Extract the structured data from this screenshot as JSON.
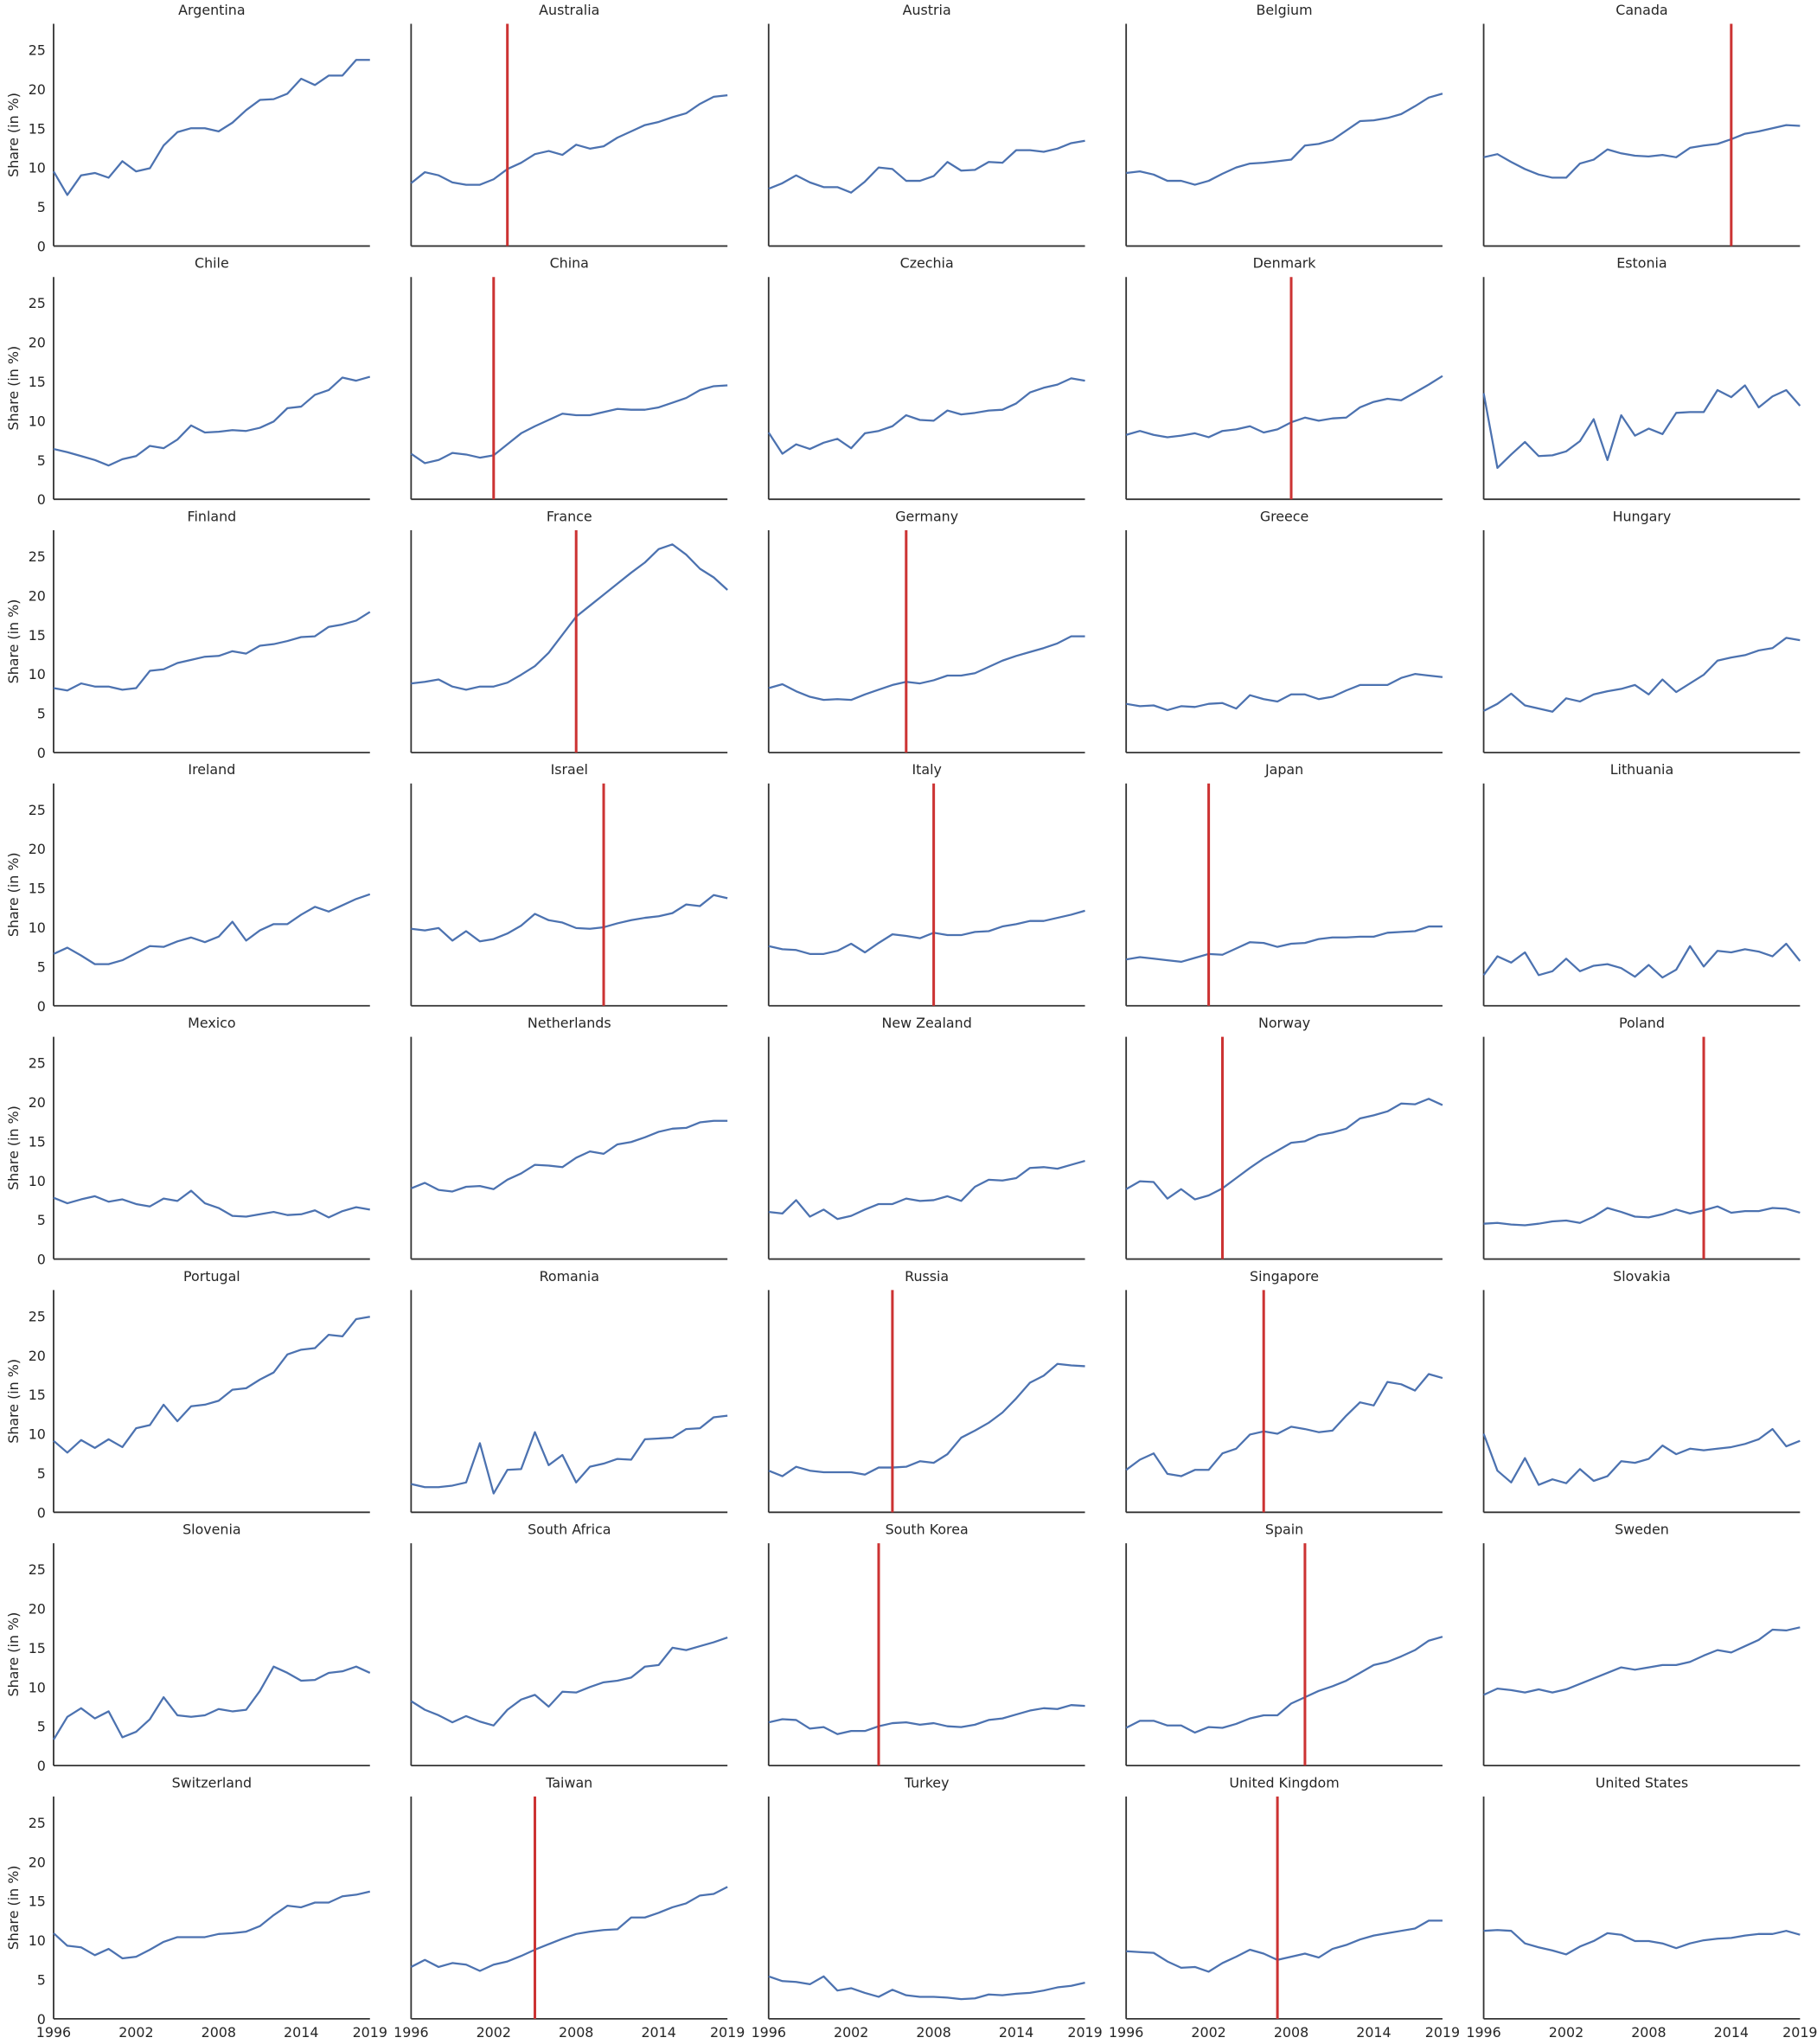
{
  "chart_data": {
    "type": "line",
    "ylabel": "Share (in %)",
    "x": [
      1996,
      1997,
      1998,
      1999,
      2000,
      2001,
      2002,
      2003,
      2004,
      2005,
      2006,
      2007,
      2008,
      2009,
      2010,
      2011,
      2012,
      2013,
      2014,
      2015,
      2016,
      2017,
      2018,
      2019
    ],
    "xlim": [
      1996,
      2019
    ],
    "xticks": [
      1996,
      2002,
      2008,
      2014,
      2019
    ],
    "ylim": [
      0,
      28.3
    ],
    "yticks": [
      0,
      5,
      10,
      15,
      20,
      25
    ],
    "grid": false,
    "color": "#4c72b0",
    "vline_color": "#cc3333",
    "panels": [
      {
        "title": "Argentina",
        "values": [
          9.5,
          6.5,
          9,
          9.3,
          8.7,
          10.8,
          9.5,
          9.9,
          12.8,
          14.5,
          15,
          15,
          14.6,
          15.7,
          17.3,
          18.6,
          18.7,
          19.4,
          21.3,
          20.5,
          21.7,
          21.7,
          23.7,
          23.7
        ]
      },
      {
        "title": "Australia",
        "vline": 2003,
        "values": [
          8,
          9.4,
          9,
          8.1,
          7.8,
          7.8,
          8.5,
          9.8,
          10.6,
          11.7,
          12.1,
          11.6,
          12.9,
          12.4,
          12.7,
          13.8,
          14.6,
          15.4,
          15.8,
          16.4,
          16.9,
          18.1,
          19,
          19.2
        ]
      },
      {
        "title": "Austria",
        "values": [
          7.3,
          8,
          9,
          8.1,
          7.5,
          7.5,
          6.8,
          8.2,
          10,
          9.8,
          8.3,
          8.3,
          8.9,
          10.7,
          9.6,
          9.7,
          10.7,
          10.6,
          12.2,
          12.2,
          12,
          12.4,
          13.1,
          13.4
        ]
      },
      {
        "title": "Belgium",
        "values": [
          9.3,
          9.5,
          9.1,
          8.3,
          8.3,
          7.8,
          8.3,
          9.2,
          10,
          10.5,
          10.6,
          10.8,
          11,
          12.8,
          13,
          13.5,
          14.7,
          15.9,
          16,
          16.3,
          16.8,
          17.8,
          18.9,
          19.4
        ]
      },
      {
        "title": "Canada",
        "vline": 2014,
        "values": [
          11.3,
          11.7,
          10.7,
          9.8,
          9.1,
          8.7,
          8.7,
          10.5,
          11,
          12.3,
          11.8,
          11.5,
          11.4,
          11.6,
          11.3,
          12.5,
          12.8,
          13,
          13.6,
          14.3,
          14.6,
          15,
          15.4,
          15.3
        ]
      },
      {
        "title": "Chile",
        "values": [
          6.4,
          6,
          5.5,
          5,
          4.3,
          5.1,
          5.5,
          6.8,
          6.5,
          7.6,
          9.4,
          8.5,
          8.6,
          8.8,
          8.7,
          9.1,
          9.9,
          11.6,
          11.8,
          13.3,
          13.9,
          15.5,
          15.1,
          15.6
        ]
      },
      {
        "title": "China",
        "vline": 2002,
        "values": [
          5.8,
          4.6,
          5,
          5.9,
          5.7,
          5.3,
          5.6,
          7,
          8.4,
          9.3,
          10.1,
          10.9,
          10.7,
          10.7,
          11.1,
          11.5,
          11.4,
          11.4,
          11.7,
          12.3,
          12.9,
          13.9,
          14.4,
          14.5
        ]
      },
      {
        "title": "Czechia",
        "values": [
          8.5,
          5.8,
          7,
          6.4,
          7.2,
          7.7,
          6.5,
          8.4,
          8.7,
          9.3,
          10.7,
          10.1,
          10,
          11.3,
          10.8,
          11,
          11.3,
          11.4,
          12.2,
          13.6,
          14.2,
          14.6,
          15.4,
          15.1
        ]
      },
      {
        "title": "Denmark",
        "vline": 2008,
        "values": [
          8.2,
          8.7,
          8.2,
          7.9,
          8.1,
          8.4,
          7.9,
          8.7,
          8.9,
          9.3,
          8.5,
          8.9,
          9.8,
          10.4,
          10,
          10.3,
          10.4,
          11.7,
          12.4,
          12.8,
          12.6,
          13.6,
          14.6,
          15.7
        ]
      },
      {
        "title": "Estonia",
        "values": [
          13.5,
          4,
          5.7,
          7.3,
          5.5,
          5.6,
          6.1,
          7.4,
          10.2,
          5,
          10.7,
          8.1,
          9,
          8.3,
          11,
          11.1,
          11.1,
          13.9,
          13,
          14.5,
          11.7,
          13.1,
          13.9,
          11.9
        ]
      },
      {
        "title": "Finland",
        "values": [
          8.2,
          7.9,
          8.8,
          8.4,
          8.4,
          8,
          8.2,
          10.4,
          10.6,
          11.4,
          11.8,
          12.2,
          12.3,
          12.9,
          12.6,
          13.6,
          13.8,
          14.2,
          14.7,
          14.8,
          16,
          16.3,
          16.8,
          17.9
        ]
      },
      {
        "title": "France",
        "vline": 2008,
        "values": [
          8.8,
          9,
          9.3,
          8.4,
          8,
          8.4,
          8.4,
          8.9,
          9.9,
          11,
          12.7,
          15,
          17.3,
          18.7,
          20.1,
          21.5,
          22.9,
          24.2,
          25.9,
          26.5,
          25.2,
          23.4,
          22.3,
          20.7
        ]
      },
      {
        "title": "Germany",
        "vline": 2006,
        "values": [
          8.2,
          8.7,
          7.8,
          7.1,
          6.7,
          6.8,
          6.7,
          7.4,
          8,
          8.6,
          9,
          8.8,
          9.2,
          9.8,
          9.8,
          10.1,
          10.9,
          11.7,
          12.3,
          12.8,
          13.3,
          13.9,
          14.8,
          14.8
        ]
      },
      {
        "title": "Greece",
        "values": [
          6.2,
          5.9,
          6,
          5.4,
          5.9,
          5.8,
          6.2,
          6.3,
          5.6,
          7.3,
          6.8,
          6.5,
          7.4,
          7.4,
          6.8,
          7.1,
          7.9,
          8.6,
          8.6,
          8.6,
          9.5,
          10,
          9.8,
          9.6
        ]
      },
      {
        "title": "Hungary",
        "values": [
          5.3,
          6.2,
          7.5,
          6,
          5.6,
          5.2,
          6.9,
          6.5,
          7.4,
          7.8,
          8.1,
          8.6,
          7.4,
          9.3,
          7.7,
          8.8,
          9.9,
          11.7,
          12.1,
          12.4,
          13,
          13.3,
          14.6,
          14.3
        ]
      },
      {
        "title": "Ireland",
        "values": [
          6.6,
          7.4,
          6.4,
          5.3,
          5.3,
          5.8,
          6.7,
          7.6,
          7.5,
          8.2,
          8.7,
          8.1,
          8.8,
          10.7,
          8.3,
          9.6,
          10.4,
          10.4,
          11.6,
          12.6,
          12,
          12.8,
          13.6,
          14.2
        ]
      },
      {
        "title": "Israel",
        "vline": 2010,
        "values": [
          9.8,
          9.6,
          9.9,
          8.3,
          9.5,
          8.2,
          8.5,
          9.2,
          10.2,
          11.7,
          10.9,
          10.6,
          9.9,
          9.8,
          10,
          10.5,
          10.9,
          11.2,
          11.4,
          11.8,
          12.9,
          12.7,
          14.1,
          13.7
        ]
      },
      {
        "title": "Italy",
        "vline": 2008,
        "values": [
          7.6,
          7.2,
          7.1,
          6.6,
          6.6,
          7,
          7.9,
          6.8,
          8,
          9.1,
          8.9,
          8.6,
          9.3,
          9,
          9,
          9.4,
          9.5,
          10.1,
          10.4,
          10.8,
          10.8,
          11.2,
          11.6,
          12.1
        ]
      },
      {
        "title": "Japan",
        "vline": 2002,
        "values": [
          5.9,
          6.2,
          6,
          5.8,
          5.6,
          6.1,
          6.6,
          6.5,
          7.3,
          8.1,
          8,
          7.5,
          7.9,
          8,
          8.5,
          8.7,
          8.7,
          8.8,
          8.8,
          9.3,
          9.4,
          9.5,
          10.1,
          10.1
        ]
      },
      {
        "title": "Lithuania",
        "values": [
          3.9,
          6.3,
          5.5,
          6.8,
          3.9,
          4.4,
          6,
          4.4,
          5.1,
          5.3,
          4.8,
          3.7,
          5.2,
          3.6,
          4.6,
          7.6,
          5,
          7,
          6.8,
          7.2,
          6.9,
          6.3,
          7.9,
          5.7
        ]
      },
      {
        "title": "Mexico",
        "values": [
          7.8,
          7.1,
          7.6,
          8,
          7.3,
          7.6,
          7,
          6.7,
          7.7,
          7.4,
          8.7,
          7.1,
          6.5,
          5.5,
          5.4,
          5.7,
          6,
          5.6,
          5.7,
          6.2,
          5.3,
          6.1,
          6.6,
          6.3
        ]
      },
      {
        "title": "Netherlands",
        "values": [
          9,
          9.7,
          8.8,
          8.6,
          9.2,
          9.3,
          8.9,
          10.1,
          10.9,
          12,
          11.9,
          11.7,
          12.9,
          13.7,
          13.4,
          14.6,
          14.9,
          15.5,
          16.2,
          16.6,
          16.7,
          17.4,
          17.6,
          17.6
        ]
      },
      {
        "title": "New Zealand",
        "values": [
          6,
          5.8,
          7.5,
          5.4,
          6.3,
          5.1,
          5.5,
          6.3,
          7,
          7,
          7.7,
          7.4,
          7.5,
          8,
          7.4,
          9.2,
          10.1,
          10,
          10.3,
          11.6,
          11.7,
          11.5,
          12,
          12.5
        ]
      },
      {
        "title": "Norway",
        "vline": 2003,
        "values": [
          8.9,
          9.9,
          9.8,
          7.7,
          8.9,
          7.6,
          8.1,
          9,
          10.3,
          11.6,
          12.8,
          13.8,
          14.8,
          15,
          15.8,
          16.1,
          16.6,
          17.9,
          18.3,
          18.8,
          19.8,
          19.7,
          20.4,
          19.6
        ]
      },
      {
        "title": "Poland",
        "vline": 2012,
        "values": [
          4.5,
          4.6,
          4.4,
          4.3,
          4.5,
          4.8,
          4.9,
          4.6,
          5.4,
          6.5,
          6,
          5.4,
          5.3,
          5.7,
          6.3,
          5.8,
          6.2,
          6.7,
          5.9,
          6.1,
          6.1,
          6.5,
          6.4,
          5.9
        ]
      },
      {
        "title": "Portugal",
        "values": [
          9.1,
          7.6,
          9.2,
          8.2,
          9.3,
          8.3,
          10.7,
          11.1,
          13.7,
          11.6,
          13.5,
          13.7,
          14.2,
          15.6,
          15.8,
          16.9,
          17.8,
          20.1,
          20.7,
          20.9,
          22.6,
          22.4,
          24.6,
          24.9
        ]
      },
      {
        "title": "Romania",
        "values": [
          3.6,
          3.2,
          3.2,
          3.4,
          3.8,
          8.8,
          2.4,
          5.4,
          5.5,
          10.2,
          6,
          7.3,
          3.8,
          5.8,
          6.2,
          6.8,
          6.7,
          9.3,
          9.4,
          9.5,
          10.6,
          10.7,
          12.1,
          12.3
        ]
      },
      {
        "title": "Russia",
        "vline": 2005,
        "values": [
          5.3,
          4.6,
          5.8,
          5.3,
          5.1,
          5.1,
          5.1,
          4.8,
          5.7,
          5.7,
          5.8,
          6.5,
          6.3,
          7.4,
          9.5,
          10.4,
          11.4,
          12.7,
          14.5,
          16.5,
          17.4,
          18.9,
          18.7,
          18.6
        ]
      },
      {
        "title": "Singapore",
        "vline": 2006,
        "values": [
          5.4,
          6.7,
          7.5,
          4.9,
          4.6,
          5.4,
          5.4,
          7.5,
          8.1,
          9.9,
          10.3,
          10,
          10.9,
          10.6,
          10.2,
          10.4,
          12.3,
          14,
          13.6,
          16.6,
          16.3,
          15.5,
          17.6,
          17.1
        ]
      },
      {
        "title": "Slovakia",
        "values": [
          10,
          5.3,
          3.8,
          6.9,
          3.5,
          4.2,
          3.7,
          5.5,
          4,
          4.6,
          6.5,
          6.3,
          6.8,
          8.5,
          7.4,
          8.1,
          7.9,
          8.1,
          8.3,
          8.7,
          9.3,
          10.6,
          8.4,
          9.1
        ]
      },
      {
        "title": "Slovenia",
        "values": [
          3.3,
          6.2,
          7.3,
          6,
          6.9,
          3.6,
          4.3,
          5.9,
          8.7,
          6.4,
          6.2,
          6.4,
          7.2,
          6.9,
          7.1,
          9.5,
          12.6,
          11.8,
          10.8,
          10.9,
          11.8,
          12,
          12.6,
          11.8
        ]
      },
      {
        "title": "South Africa",
        "values": [
          8.2,
          7.1,
          6.4,
          5.5,
          6.3,
          5.6,
          5.1,
          7.1,
          8.4,
          9,
          7.5,
          9.4,
          9.3,
          10,
          10.6,
          10.8,
          11.2,
          12.6,
          12.8,
          15,
          14.7,
          15.2,
          15.7,
          16.3
        ]
      },
      {
        "title": "South Korea",
        "vline": 2004,
        "values": [
          5.5,
          5.9,
          5.8,
          4.7,
          4.9,
          4,
          4.4,
          4.4,
          5,
          5.4,
          5.5,
          5.2,
          5.4,
          5,
          4.9,
          5.2,
          5.8,
          6,
          6.5,
          7,
          7.3,
          7.2,
          7.7,
          7.6
        ]
      },
      {
        "title": "Spain",
        "vline": 2009,
        "values": [
          4.8,
          5.7,
          5.7,
          5.1,
          5.1,
          4.2,
          4.9,
          4.8,
          5.3,
          6,
          6.4,
          6.4,
          7.9,
          8.7,
          9.5,
          10.1,
          10.8,
          11.8,
          12.8,
          13.2,
          13.9,
          14.7,
          15.9,
          16.4
        ]
      },
      {
        "title": "Sweden",
        "values": [
          9,
          9.8,
          9.6,
          9.3,
          9.7,
          9.3,
          9.7,
          10.4,
          11.1,
          11.8,
          12.5,
          12.2,
          12.5,
          12.8,
          12.8,
          13.2,
          14,
          14.7,
          14.4,
          15.2,
          16,
          17.3,
          17.2,
          17.6
        ]
      },
      {
        "title": "Switzerland",
        "values": [
          10.9,
          9.3,
          9.1,
          8.1,
          8.9,
          7.7,
          7.9,
          8.8,
          9.8,
          10.4,
          10.4,
          10.4,
          10.8,
          10.9,
          11.1,
          11.8,
          13.2,
          14.4,
          14.2,
          14.8,
          14.8,
          15.6,
          15.8,
          16.2
        ]
      },
      {
        "title": "Taiwan",
        "vline": 2005,
        "values": [
          6.6,
          7.5,
          6.6,
          7.1,
          6.9,
          6.1,
          6.9,
          7.3,
          8,
          8.8,
          9.5,
          10.2,
          10.8,
          11.1,
          11.3,
          11.4,
          12.9,
          12.9,
          13.5,
          14.2,
          14.7,
          15.7,
          15.9,
          16.8
        ]
      },
      {
        "title": "Turkey",
        "values": [
          5.4,
          4.8,
          4.7,
          4.4,
          5.4,
          3.6,
          3.9,
          3.3,
          2.8,
          3.7,
          3,
          2.8,
          2.8,
          2.7,
          2.5,
          2.6,
          3.1,
          3,
          3.2,
          3.3,
          3.6,
          4,
          4.2,
          4.6
        ]
      },
      {
        "title": "United Kingdom",
        "vline": 2007,
        "values": [
          8.6,
          8.5,
          8.4,
          7.3,
          6.5,
          6.6,
          6,
          7.1,
          7.9,
          8.8,
          8.3,
          7.5,
          7.9,
          8.3,
          7.8,
          8.9,
          9.4,
          10.1,
          10.6,
          10.9,
          11.2,
          11.5,
          12.5,
          12.5
        ]
      },
      {
        "title": "United States",
        "values": [
          11.2,
          11.3,
          11.2,
          9.6,
          9.1,
          8.7,
          8.2,
          9.2,
          9.9,
          10.9,
          10.7,
          9.9,
          9.9,
          9.6,
          9,
          9.6,
          10,
          10.2,
          10.3,
          10.6,
          10.8,
          10.8,
          11.2,
          10.7
        ]
      }
    ]
  }
}
